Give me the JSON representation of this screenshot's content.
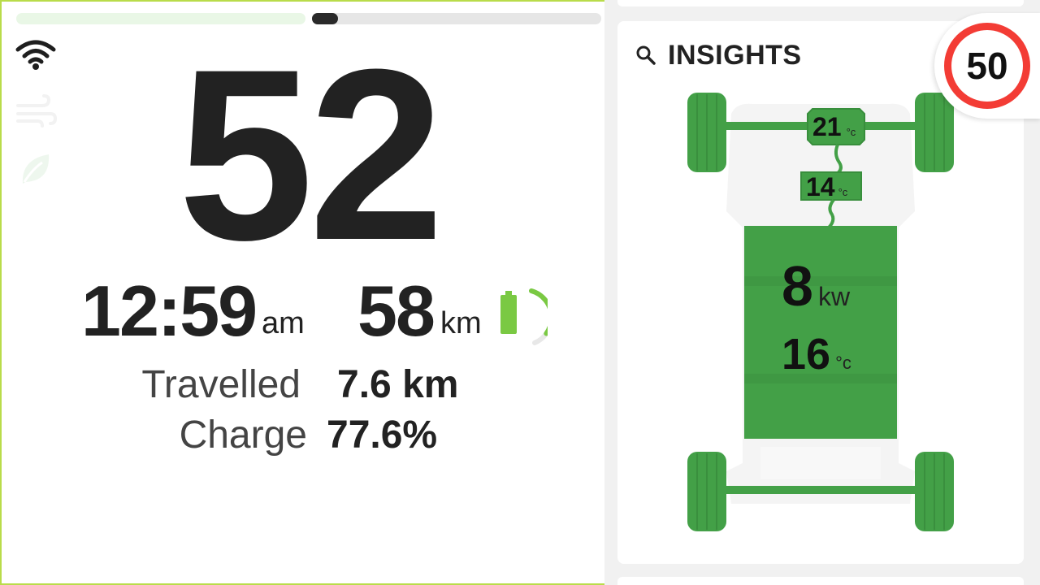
{
  "progress": {
    "left_fill": 0,
    "right_fill": 0.09
  },
  "side_icons": [
    "wifi-icon",
    "fan-icon",
    "leaf-icon"
  ],
  "speed": "52",
  "time": {
    "value": "12:59",
    "suffix": "am"
  },
  "range": {
    "value": "58",
    "unit": "km"
  },
  "battery": {
    "color": "#7ac943",
    "charge_fraction": 0.776
  },
  "stats": [
    {
      "label": "Travelled",
      "value": "7.6 km"
    },
    {
      "label": "Charge",
      "value": "77.6%"
    }
  ],
  "insights": {
    "title": "INSIGHTS",
    "front_motor": {
      "value": "21",
      "unit": "°c"
    },
    "inverter": {
      "value": "14",
      "unit": "°c"
    },
    "battery_power": {
      "value": "8",
      "unit": "kw"
    },
    "battery_temp": {
      "value": "16",
      "unit": "°c"
    }
  },
  "speed_limit": "50",
  "colors": {
    "green": "#43a047",
    "accent": "#b9dc4a",
    "limit_red": "#f33c35"
  }
}
